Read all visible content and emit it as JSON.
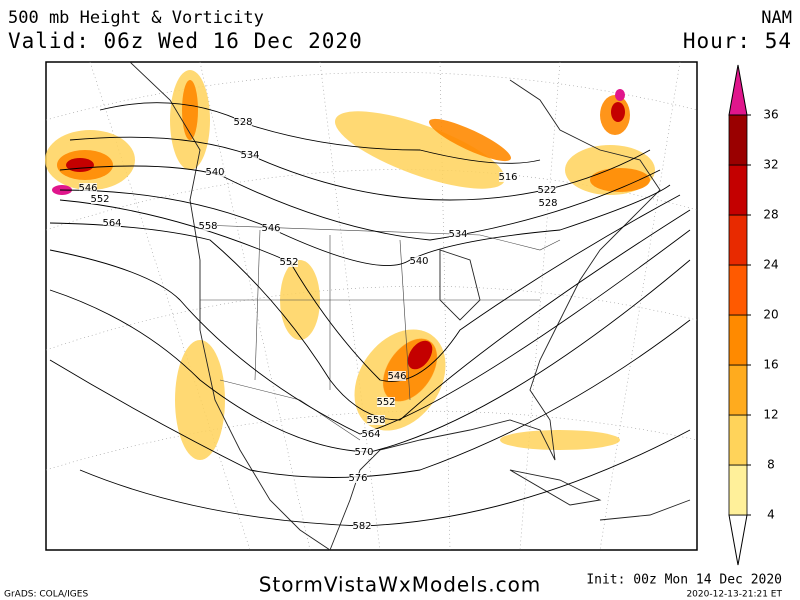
{
  "header": {
    "title": "500 mb Height & Vorticity",
    "model": "NAM",
    "valid": "Valid: 06z Wed 16 Dec 2020",
    "hour": "Hour: 54"
  },
  "colorbar": {
    "levels": [
      4,
      8,
      12,
      16,
      20,
      24,
      28,
      32,
      36
    ],
    "colors": [
      "#ffffff",
      "#fff09a",
      "#ffd35a",
      "#ffab1e",
      "#ff8a00",
      "#ff5a00",
      "#e82a00",
      "#c40000",
      "#9a0000",
      "#e0168c"
    ]
  },
  "contour_labels": [
    "528",
    "534",
    "540",
    "546",
    "552",
    "564",
    "558",
    "546",
    "552",
    "516",
    "522",
    "528",
    "534",
    "540",
    "546",
    "552",
    "558",
    "564",
    "570",
    "576",
    "582"
  ],
  "footer": {
    "credit": "GrADS: COLA/IGES",
    "site": "StormVistaWxModels.com",
    "init": "Init: 00z Mon 14 Dec 2020",
    "stamp": "2020-12-13-21:21 ET"
  }
}
